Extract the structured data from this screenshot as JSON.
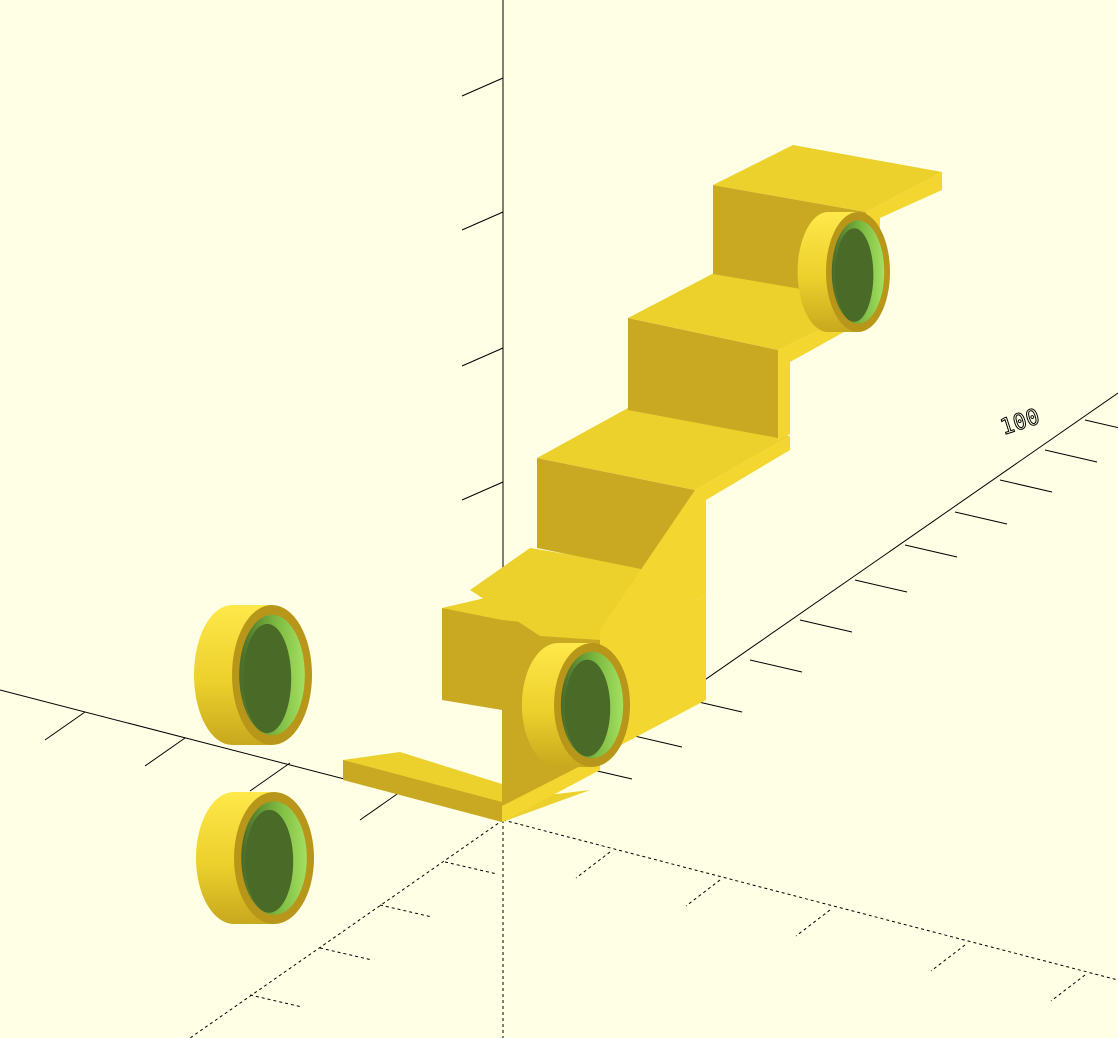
{
  "viewport": {
    "background": "#ffffe5",
    "axis_color": "#000000",
    "colors": {
      "face_top": "#ecd02c",
      "face_front": "#c9a922",
      "face_side": "#f4d630",
      "ring_outer_light": "#ffe84a",
      "ring_outer_dark": "#c8a81e",
      "ring_rim": "#b8961a",
      "ring_inner_dark": "#4a6a28",
      "ring_inner_light": "#a4e060",
      "ring_inner_wall": "#7ab840"
    },
    "axis_label": "100",
    "objects": [
      {
        "name": "staircase",
        "type": "stairs",
        "steps": 5
      },
      {
        "name": "ring-left-upper",
        "type": "ring"
      },
      {
        "name": "ring-left-lower",
        "type": "ring"
      },
      {
        "name": "ring-stair-bottom",
        "type": "ring"
      },
      {
        "name": "ring-stair-top",
        "type": "ring"
      }
    ]
  }
}
